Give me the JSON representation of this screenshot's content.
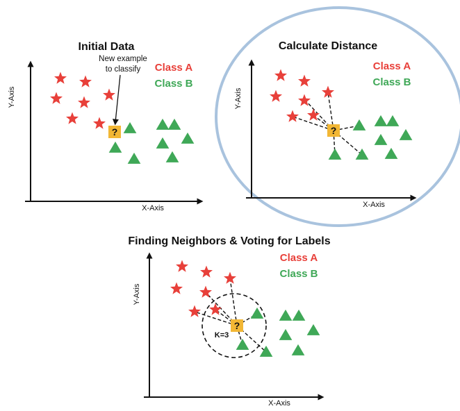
{
  "colors": {
    "class_a": "#e8403a",
    "class_b": "#3fa857",
    "query": "#f2b735",
    "highlight_circle": "#a9c3de",
    "axis": "#111111"
  },
  "icons": {
    "class_a_marker": "red-star-icon",
    "class_b_marker": "green-triangle-icon",
    "query_marker": "question-mark-box-icon"
  },
  "panels": {
    "initial": {
      "title": "Initial Data",
      "xlabel": "X-Axis",
      "ylabel": "Y-Axis",
      "legend_a": "Class A",
      "legend_b": "Class B",
      "annotation_line1": "New example",
      "annotation_line2": "to classify",
      "query_label": "?"
    },
    "distance": {
      "title": "Calculate Distance",
      "xlabel": "X-Axis",
      "ylabel": "Y-Axis",
      "legend_a": "Class A",
      "legend_b": "Class B",
      "query_label": "?"
    },
    "voting": {
      "title": "Finding Neighbors & Voting for Labels",
      "xlabel": "X-Axis",
      "ylabel": "Y-Axis",
      "legend_a": "Class A",
      "legend_b": "Class B",
      "k_label": "K=3",
      "query_label": "?"
    }
  }
}
